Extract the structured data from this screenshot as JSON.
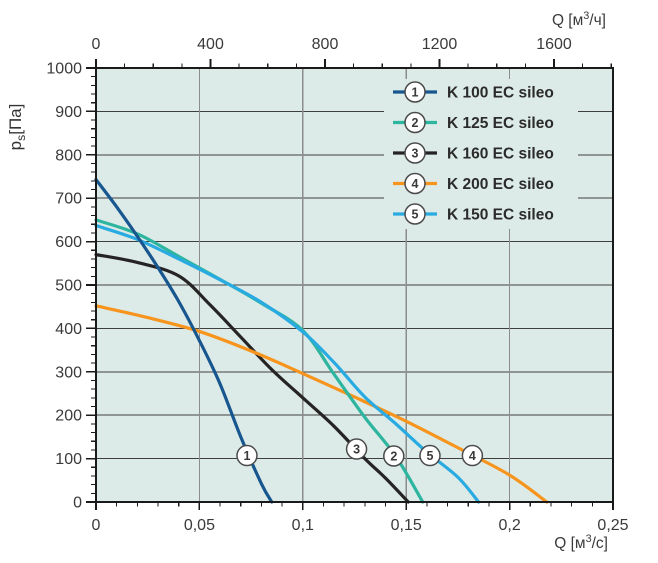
{
  "chart_data": {
    "type": "line",
    "title": "",
    "plot_bg": "#dcebe7",
    "axis_color": "#1a1a1a",
    "text_color": "#3a3a3a",
    "grid": {
      "show": true,
      "h_color": "#3f3f3f",
      "v_color": "#8c8c8c"
    },
    "axes": {
      "y": {
        "label_parts": [
          {
            "t": "p"
          },
          {
            "t": "s",
            "sub": true
          },
          {
            "t": "[Па]"
          }
        ],
        "min": 0,
        "max": 1000,
        "major": 100,
        "minor": 20,
        "ticks": [
          {
            "v": 0,
            "l": "0"
          },
          {
            "v": 100,
            "l": "100"
          },
          {
            "v": 200,
            "l": "200"
          },
          {
            "v": 300,
            "l": "300"
          },
          {
            "v": 400,
            "l": "400"
          },
          {
            "v": 500,
            "l": "500"
          },
          {
            "v": 600,
            "l": "600"
          },
          {
            "v": 700,
            "l": "700"
          },
          {
            "v": 800,
            "l": "800"
          },
          {
            "v": 900,
            "l": "900"
          },
          {
            "v": 1000,
            "l": "1000"
          }
        ]
      },
      "x_bottom": {
        "label_parts": [
          {
            "t": "Q [м"
          },
          {
            "t": "3",
            "sup": true
          },
          {
            "t": "/с]"
          }
        ],
        "min": 0,
        "max": 0.25,
        "major": 0.05,
        "minor": 0.01,
        "ticks": [
          {
            "v": 0,
            "l": "0"
          },
          {
            "v": 0.05,
            "l": "0,05"
          },
          {
            "v": 0.1,
            "l": "0,1"
          },
          {
            "v": 0.15,
            "l": "0,15"
          },
          {
            "v": 0.2,
            "l": "0,2"
          },
          {
            "v": 0.25,
            "l": "0,25"
          }
        ]
      },
      "x_top": {
        "label_parts": [
          {
            "t": "Q [м"
          },
          {
            "t": "3",
            "sup": true
          },
          {
            "t": "/ч]"
          }
        ],
        "min": 0,
        "max": 1806,
        "major": 400,
        "minor": 100,
        "ticks": [
          {
            "v": 0,
            "l": "0"
          },
          {
            "v": 400,
            "l": "400"
          },
          {
            "v": 800,
            "l": "800"
          },
          {
            "v": 1200,
            "l": "1200"
          },
          {
            "v": 1600,
            "l": "1600"
          }
        ]
      }
    },
    "series": [
      {
        "num": "1",
        "name": "K 100 EC sileo",
        "color": "#17568f",
        "marker": {
          "q": 0.073,
          "p": 107
        },
        "points": [
          [
            0,
            743
          ],
          [
            0.01,
            680
          ],
          [
            0.02,
            612
          ],
          [
            0.03,
            540
          ],
          [
            0.04,
            462
          ],
          [
            0.05,
            372
          ],
          [
            0.06,
            272
          ],
          [
            0.07,
            150
          ],
          [
            0.08,
            42
          ],
          [
            0.085,
            0
          ]
        ]
      },
      {
        "num": "2",
        "name": "K 125 EC sileo",
        "color": "#2eb5a0",
        "marker": {
          "q": 0.144,
          "p": 106
        },
        "points": [
          [
            0,
            650
          ],
          [
            0.02,
            618
          ],
          [
            0.04,
            566
          ],
          [
            0.06,
            513
          ],
          [
            0.08,
            458
          ],
          [
            0.1,
            395
          ],
          [
            0.115,
            295
          ],
          [
            0.13,
            195
          ],
          [
            0.145,
            105
          ],
          [
            0.158,
            0
          ]
        ]
      },
      {
        "num": "3",
        "name": "K 160 EC sileo",
        "color": "#262324",
        "marker": {
          "q": 0.126,
          "p": 122
        },
        "points": [
          [
            0,
            570
          ],
          [
            0.02,
            552
          ],
          [
            0.04,
            521
          ],
          [
            0.055,
            455
          ],
          [
            0.07,
            380
          ],
          [
            0.085,
            305
          ],
          [
            0.1,
            240
          ],
          [
            0.115,
            175
          ],
          [
            0.13,
            100
          ],
          [
            0.14,
            55
          ],
          [
            0.151,
            0
          ]
        ]
      },
      {
        "num": "4",
        "name": "K 200 EC sileo",
        "color": "#f7941d",
        "marker": {
          "q": 0.182,
          "p": 107
        },
        "points": [
          [
            0,
            452
          ],
          [
            0.025,
            425
          ],
          [
            0.05,
            393
          ],
          [
            0.075,
            348
          ],
          [
            0.1,
            296
          ],
          [
            0.125,
            242
          ],
          [
            0.15,
            186
          ],
          [
            0.175,
            125
          ],
          [
            0.2,
            62
          ],
          [
            0.218,
            0
          ]
        ]
      },
      {
        "num": "5",
        "name": "K 150 EC sileo",
        "color": "#29abe2",
        "marker": {
          "q": 0.1615,
          "p": 107
        },
        "points": [
          [
            0,
            637
          ],
          [
            0.02,
            605
          ],
          [
            0.04,
            560
          ],
          [
            0.06,
            512
          ],
          [
            0.08,
            460
          ],
          [
            0.1,
            392
          ],
          [
            0.115,
            322
          ],
          [
            0.13,
            242
          ],
          [
            0.145,
            180
          ],
          [
            0.16,
            115
          ],
          [
            0.175,
            57
          ],
          [
            0.185,
            0
          ]
        ]
      }
    ],
    "legend": {
      "position": "top-right",
      "display_order": [
        0,
        1,
        2,
        3,
        4
      ]
    },
    "draw_order": [
      2,
      3,
      1,
      4,
      0
    ],
    "marker_style": {
      "fill": "#ffffff",
      "stroke": "#4a4a4a",
      "text_color": "#3a3a3a"
    }
  }
}
